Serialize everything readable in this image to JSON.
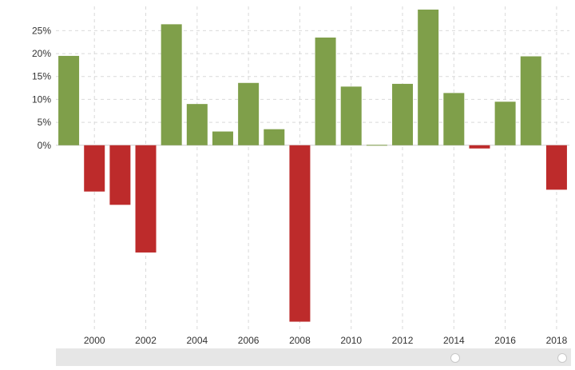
{
  "chart_data": {
    "type": "bar",
    "x": [
      1999,
      2000,
      2001,
      2002,
      2003,
      2004,
      2005,
      2006,
      2007,
      2008,
      2009,
      2010,
      2011,
      2012,
      2013,
      2014,
      2015,
      2016,
      2017,
      2018
    ],
    "values": [
      19.5,
      -10.1,
      -13.0,
      -23.4,
      26.4,
      9.0,
      3.0,
      13.6,
      3.5,
      -38.5,
      23.5,
      12.8,
      0.0,
      13.4,
      29.6,
      11.4,
      -0.7,
      9.5,
      19.4,
      -9.7
    ],
    "x_tick_labels": [
      "2000",
      "2002",
      "2004",
      "2006",
      "2008",
      "2010",
      "2012",
      "2014",
      "2016",
      "2018"
    ],
    "y_tick_labels": [
      "0%",
      "5%",
      "10%",
      "15%",
      "20%",
      "25%"
    ],
    "y_ticks": [
      0,
      5,
      10,
      15,
      20,
      25
    ],
    "ylim": [
      -39.8,
      30.3
    ],
    "xlim": [
      1998.5,
      2018.5
    ],
    "positive_color": "#7f9f4a",
    "negative_color": "#bd2b2b",
    "grid": true,
    "legend": false,
    "title": "",
    "xlabel": "",
    "ylabel": ""
  }
}
